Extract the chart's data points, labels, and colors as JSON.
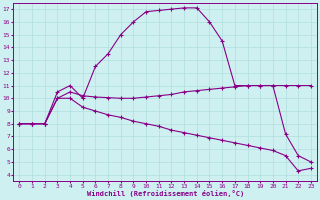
{
  "xlabel": "Windchill (Refroidissement éolien,°C)",
  "xlim": [
    -0.5,
    23.5
  ],
  "ylim": [
    3.5,
    17.5
  ],
  "yticks": [
    4,
    5,
    6,
    7,
    8,
    9,
    10,
    11,
    12,
    13,
    14,
    15,
    16,
    17
  ],
  "xticks": [
    0,
    1,
    2,
    3,
    4,
    5,
    6,
    7,
    8,
    9,
    10,
    11,
    12,
    13,
    14,
    15,
    16,
    17,
    18,
    19,
    20,
    21,
    22,
    23
  ],
  "bg_color": "#cff0f0",
  "line_color": "#880088",
  "grid_color": "#b0dede",
  "line1_x": [
    0,
    1,
    2,
    3,
    4,
    5,
    6,
    7,
    8,
    9,
    10,
    11,
    12,
    13,
    14,
    15,
    16,
    17,
    18,
    19,
    20,
    21,
    22,
    23
  ],
  "line1_y": [
    8.0,
    8.0,
    8.0,
    10.5,
    11.0,
    10.0,
    12.5,
    13.5,
    15.0,
    16.0,
    16.8,
    16.9,
    17.0,
    17.1,
    17.1,
    16.0,
    14.5,
    11.0,
    11.0,
    11.0,
    11.0,
    7.2,
    5.5,
    5.0
  ],
  "line2_x": [
    0,
    1,
    2,
    3,
    4,
    5,
    6,
    7,
    8,
    9,
    10,
    11,
    12,
    13,
    14,
    15,
    16,
    17,
    18,
    19,
    20,
    21,
    22,
    23
  ],
  "line2_y": [
    8.0,
    8.0,
    8.0,
    10.0,
    10.5,
    10.2,
    10.1,
    10.05,
    10.0,
    10.0,
    10.1,
    10.2,
    10.3,
    10.5,
    10.6,
    10.7,
    10.8,
    10.9,
    11.0,
    11.0,
    11.0,
    11.0,
    11.0,
    11.0
  ],
  "line3_x": [
    0,
    1,
    2,
    3,
    4,
    5,
    6,
    7,
    8,
    9,
    10,
    11,
    12,
    13,
    14,
    15,
    16,
    17,
    18,
    19,
    20,
    21,
    22,
    23
  ],
  "line3_y": [
    8.0,
    8.0,
    8.0,
    10.0,
    10.0,
    9.3,
    9.0,
    8.7,
    8.5,
    8.2,
    8.0,
    7.8,
    7.5,
    7.3,
    7.1,
    6.9,
    6.7,
    6.5,
    6.3,
    6.1,
    5.9,
    5.5,
    4.3,
    4.5
  ]
}
